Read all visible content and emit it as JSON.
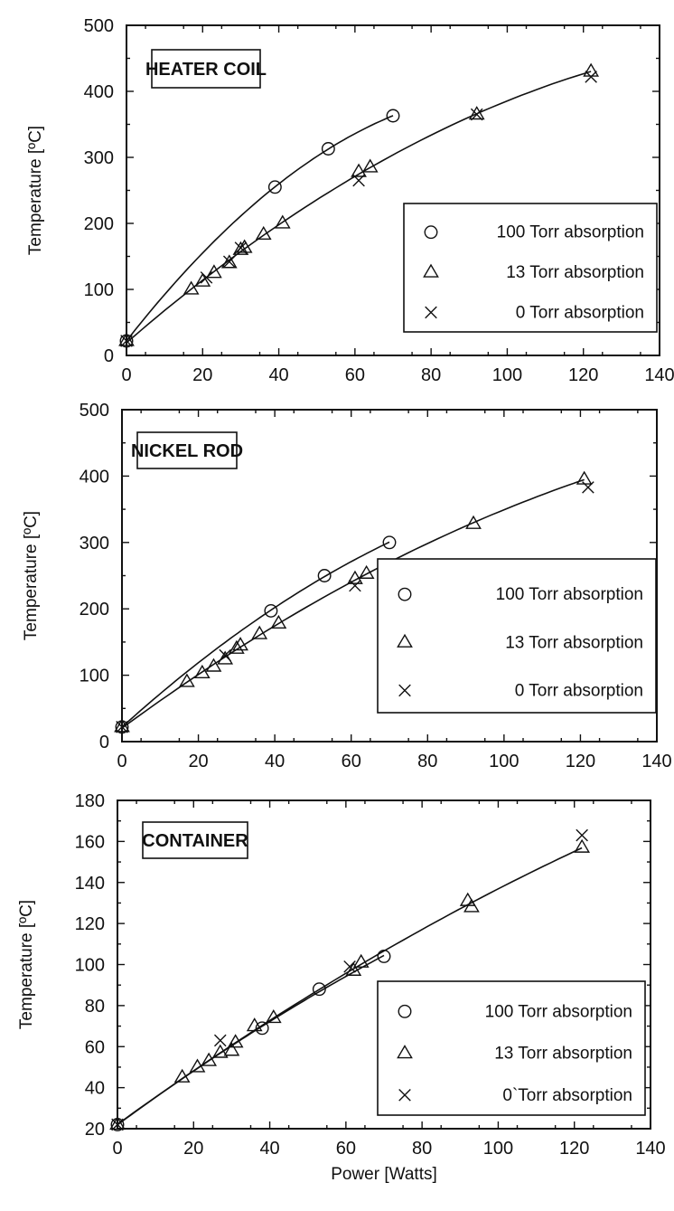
{
  "chart_data": [
    {
      "type": "scatter",
      "panel_label": "HEATER COIL",
      "ylabel": "Temperature [ºC]",
      "xlabel": "",
      "xlim": [
        0,
        140
      ],
      "ylim": [
        0,
        500
      ],
      "xticks": [
        0,
        20,
        40,
        60,
        80,
        100,
        120,
        140
      ],
      "yticks": [
        0,
        100,
        200,
        300,
        400,
        500
      ],
      "legend_position": "bottom-right",
      "legend": [
        "100 Torr absorption",
        "13 Torr absorption",
        "0 Torr absorption"
      ],
      "series": [
        {
          "name": "100 Torr absorption",
          "marker": "circle",
          "points": [
            [
              0,
              22
            ],
            [
              39,
              255
            ],
            [
              53,
              313
            ],
            [
              70,
              363
            ]
          ]
        },
        {
          "name": "13 Torr absorption",
          "marker": "triangle",
          "points": [
            [
              0,
              22
            ],
            [
              17,
              100
            ],
            [
              20,
              112
            ],
            [
              23,
              125
            ],
            [
              27,
              140
            ],
            [
              30,
              160
            ],
            [
              31,
              163
            ],
            [
              36,
              183
            ],
            [
              41,
              200
            ],
            [
              61,
              278
            ],
            [
              64,
              285
            ],
            [
              92,
              365
            ],
            [
              122,
              430
            ]
          ]
        },
        {
          "name": "0 Torr absorption",
          "marker": "cross",
          "points": [
            [
              0,
              22
            ],
            [
              21,
              118
            ],
            [
              27,
              142
            ],
            [
              30,
              163
            ],
            [
              61,
              265
            ],
            [
              92,
              365
            ],
            [
              122,
              422
            ]
          ]
        }
      ]
    },
    {
      "type": "scatter",
      "panel_label": "NICKEL ROD",
      "ylabel": "Temperature [ºC]",
      "xlabel": "",
      "xlim": [
        0,
        140
      ],
      "ylim": [
        0,
        500
      ],
      "xticks": [
        0,
        20,
        40,
        60,
        80,
        100,
        120,
        140
      ],
      "yticks": [
        0,
        100,
        200,
        300,
        400,
        500
      ],
      "legend_position": "bottom-right",
      "legend": [
        "100 Torr absorption",
        "13 Torr absorption",
        "0 Torr absorption"
      ],
      "series": [
        {
          "name": "100 Torr absorption",
          "marker": "circle",
          "points": [
            [
              0,
              22
            ],
            [
              39,
              197
            ],
            [
              53,
              250
            ],
            [
              70,
              300
            ]
          ]
        },
        {
          "name": "13 Torr absorption",
          "marker": "triangle",
          "points": [
            [
              0,
              22
            ],
            [
              17,
              90
            ],
            [
              21,
              103
            ],
            [
              24,
              113
            ],
            [
              27,
              124
            ],
            [
              30,
              140
            ],
            [
              31,
              145
            ],
            [
              36,
              162
            ],
            [
              41,
              178
            ],
            [
              61,
              245
            ],
            [
              64,
              253
            ],
            [
              92,
              328
            ],
            [
              121,
              395
            ]
          ]
        },
        {
          "name": "0 Torr absorption",
          "marker": "cross",
          "points": [
            [
              0,
              22
            ],
            [
              27,
              130
            ],
            [
              61,
              235
            ],
            [
              122,
              383
            ]
          ]
        }
      ]
    },
    {
      "type": "scatter",
      "panel_label": "CONTAINER",
      "ylabel": "Temperature [ºC]",
      "xlabel": "Power [Watts]",
      "xlim": [
        0,
        140
      ],
      "ylim": [
        20,
        180
      ],
      "xticks": [
        0,
        20,
        40,
        60,
        80,
        100,
        120,
        140
      ],
      "yticks": [
        20,
        40,
        60,
        80,
        100,
        120,
        140,
        160,
        180
      ],
      "legend_position": "bottom-right",
      "legend": [
        "100 Torr absorption",
        "13 Torr absorption",
        "0`Torr absorption"
      ],
      "series": [
        {
          "name": "100 Torr absorption",
          "marker": "circle",
          "points": [
            [
              0,
              22
            ],
            [
              38,
              69
            ],
            [
              53,
              88
            ],
            [
              70,
              104
            ]
          ]
        },
        {
          "name": "13 Torr absorption",
          "marker": "triangle",
          "points": [
            [
              0,
              22
            ],
            [
              17,
              45
            ],
            [
              21,
              50
            ],
            [
              24,
              53
            ],
            [
              27,
              57
            ],
            [
              30,
              58
            ],
            [
              31,
              62
            ],
            [
              36,
              70
            ],
            [
              41,
              74
            ],
            [
              62,
              97
            ],
            [
              64,
              101
            ],
            [
              92,
              131
            ],
            [
              93,
              128
            ],
            [
              122,
              157
            ]
          ]
        },
        {
          "name": "0`Torr absorption",
          "marker": "cross",
          "points": [
            [
              0,
              22
            ],
            [
              27,
              63
            ],
            [
              61,
              99
            ],
            [
              122,
              163
            ]
          ]
        }
      ]
    }
  ]
}
